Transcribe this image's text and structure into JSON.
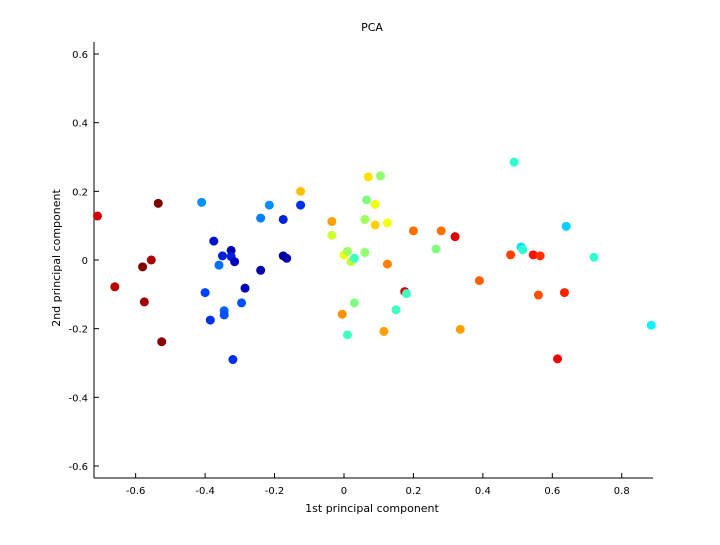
{
  "chart_data": {
    "type": "scatter",
    "title": "PCA",
    "xlabel": "1st principal component",
    "ylabel": "2nd principal component",
    "xlim": [
      -0.72,
      0.89
    ],
    "ylim": [
      -0.635,
      0.635
    ],
    "xticks": [
      -0.6,
      -0.4,
      -0.2,
      0,
      0.2,
      0.4,
      0.6,
      0.8
    ],
    "xtick_labels": [
      "-0.6",
      "-0.4",
      "-0.2",
      "0",
      "0.2",
      "0.4",
      "0.6",
      "0.8"
    ],
    "yticks": [
      -0.6,
      -0.4,
      -0.2,
      0,
      0.2,
      0.4,
      0.6
    ],
    "ytick_labels": [
      "-0.6",
      "-0.4",
      "-0.2",
      "0",
      "0.2",
      "0.4",
      "0.6"
    ],
    "grid": false,
    "legend": "none",
    "points": [
      {
        "x": -0.71,
        "y": 0.128,
        "color": "#d40000"
      },
      {
        "x": -0.66,
        "y": -0.078,
        "color": "#b80000"
      },
      {
        "x": -0.58,
        "y": -0.02,
        "color": "#800000"
      },
      {
        "x": -0.575,
        "y": -0.122,
        "color": "#a00000"
      },
      {
        "x": -0.555,
        "y": 0.0,
        "color": "#a80000"
      },
      {
        "x": -0.535,
        "y": 0.165,
        "color": "#800000"
      },
      {
        "x": -0.525,
        "y": -0.238,
        "color": "#880000"
      },
      {
        "x": -0.41,
        "y": 0.168,
        "color": "#0090ff"
      },
      {
        "x": -0.4,
        "y": -0.095,
        "color": "#0040ff"
      },
      {
        "x": -0.385,
        "y": -0.175,
        "color": "#0030ee"
      },
      {
        "x": -0.375,
        "y": 0.055,
        "color": "#0010cc"
      },
      {
        "x": -0.36,
        "y": -0.015,
        "color": "#0070ff"
      },
      {
        "x": -0.35,
        "y": 0.012,
        "color": "#0020dd"
      },
      {
        "x": -0.345,
        "y": -0.148,
        "color": "#0060ff"
      },
      {
        "x": -0.345,
        "y": -0.16,
        "color": "#0050ff"
      },
      {
        "x": -0.325,
        "y": 0.028,
        "color": "#0000b0"
      },
      {
        "x": -0.325,
        "y": 0.01,
        "color": "#0020dd"
      },
      {
        "x": -0.32,
        "y": -0.29,
        "color": "#0030ee"
      },
      {
        "x": -0.315,
        "y": -0.005,
        "color": "#0000c0"
      },
      {
        "x": -0.295,
        "y": -0.125,
        "color": "#0050ff"
      },
      {
        "x": -0.285,
        "y": -0.082,
        "color": "#0000c0"
      },
      {
        "x": -0.24,
        "y": 0.122,
        "color": "#0080ff"
      },
      {
        "x": -0.24,
        "y": -0.03,
        "color": "#0000aa"
      },
      {
        "x": -0.215,
        "y": 0.16,
        "color": "#0090ff"
      },
      {
        "x": -0.175,
        "y": 0.118,
        "color": "#0020dd"
      },
      {
        "x": -0.175,
        "y": 0.012,
        "color": "#000090"
      },
      {
        "x": -0.165,
        "y": 0.005,
        "color": "#0000b0"
      },
      {
        "x": -0.125,
        "y": 0.2,
        "color": "#ffc000"
      },
      {
        "x": -0.125,
        "y": 0.16,
        "color": "#0030ee"
      },
      {
        "x": -0.035,
        "y": 0.112,
        "color": "#ffa000"
      },
      {
        "x": -0.035,
        "y": 0.072,
        "color": "#d0ff30"
      },
      {
        "x": -0.005,
        "y": -0.158,
        "color": "#ff9000"
      },
      {
        "x": 0.0,
        "y": 0.015,
        "color": "#f0ff10"
      },
      {
        "x": 0.01,
        "y": 0.025,
        "color": "#a0ff60"
      },
      {
        "x": 0.01,
        "y": -0.218,
        "color": "#40ffc0"
      },
      {
        "x": 0.02,
        "y": -0.005,
        "color": "#c0ff40"
      },
      {
        "x": 0.03,
        "y": 0.005,
        "color": "#40ffc0"
      },
      {
        "x": 0.03,
        "y": -0.125,
        "color": "#80ff80"
      },
      {
        "x": 0.06,
        "y": 0.118,
        "color": "#a0ff60"
      },
      {
        "x": 0.065,
        "y": 0.175,
        "color": "#80ff80"
      },
      {
        "x": 0.07,
        "y": 0.242,
        "color": "#ffe000"
      },
      {
        "x": 0.06,
        "y": 0.022,
        "color": "#90ff70"
      },
      {
        "x": 0.09,
        "y": 0.162,
        "color": "#f0ff10"
      },
      {
        "x": 0.09,
        "y": 0.102,
        "color": "#ffd000"
      },
      {
        "x": 0.105,
        "y": 0.245,
        "color": "#90ff70"
      },
      {
        "x": 0.115,
        "y": -0.208,
        "color": "#ffa000"
      },
      {
        "x": 0.125,
        "y": 0.108,
        "color": "#f0ff10"
      },
      {
        "x": 0.125,
        "y": -0.012,
        "color": "#ff8000"
      },
      {
        "x": 0.15,
        "y": -0.145,
        "color": "#40ffc0"
      },
      {
        "x": 0.175,
        "y": -0.092,
        "color": "#d00000"
      },
      {
        "x": 0.18,
        "y": -0.098,
        "color": "#40ffc0"
      },
      {
        "x": 0.2,
        "y": 0.085,
        "color": "#ff7000"
      },
      {
        "x": 0.265,
        "y": 0.032,
        "color": "#80ff80"
      },
      {
        "x": 0.28,
        "y": 0.085,
        "color": "#ff7000"
      },
      {
        "x": 0.32,
        "y": 0.068,
        "color": "#e00000"
      },
      {
        "x": 0.335,
        "y": -0.202,
        "color": "#ffa000"
      },
      {
        "x": 0.39,
        "y": -0.06,
        "color": "#ff6000"
      },
      {
        "x": 0.48,
        "y": 0.015,
        "color": "#ff4000"
      },
      {
        "x": 0.49,
        "y": 0.285,
        "color": "#30ffd0"
      },
      {
        "x": 0.51,
        "y": 0.038,
        "color": "#00e0ff"
      },
      {
        "x": 0.515,
        "y": 0.03,
        "color": "#30ffd0"
      },
      {
        "x": 0.545,
        "y": 0.015,
        "color": "#ff1000"
      },
      {
        "x": 0.56,
        "y": -0.102,
        "color": "#ff5000"
      },
      {
        "x": 0.565,
        "y": 0.012,
        "color": "#ff3000"
      },
      {
        "x": 0.615,
        "y": -0.288,
        "color": "#ee0000"
      },
      {
        "x": 0.635,
        "y": -0.095,
        "color": "#ff2000"
      },
      {
        "x": 0.64,
        "y": 0.098,
        "color": "#00d0ff"
      },
      {
        "x": 0.72,
        "y": 0.008,
        "color": "#30ffd0"
      },
      {
        "x": 0.885,
        "y": -0.19,
        "color": "#10f0ff"
      }
    ]
  }
}
